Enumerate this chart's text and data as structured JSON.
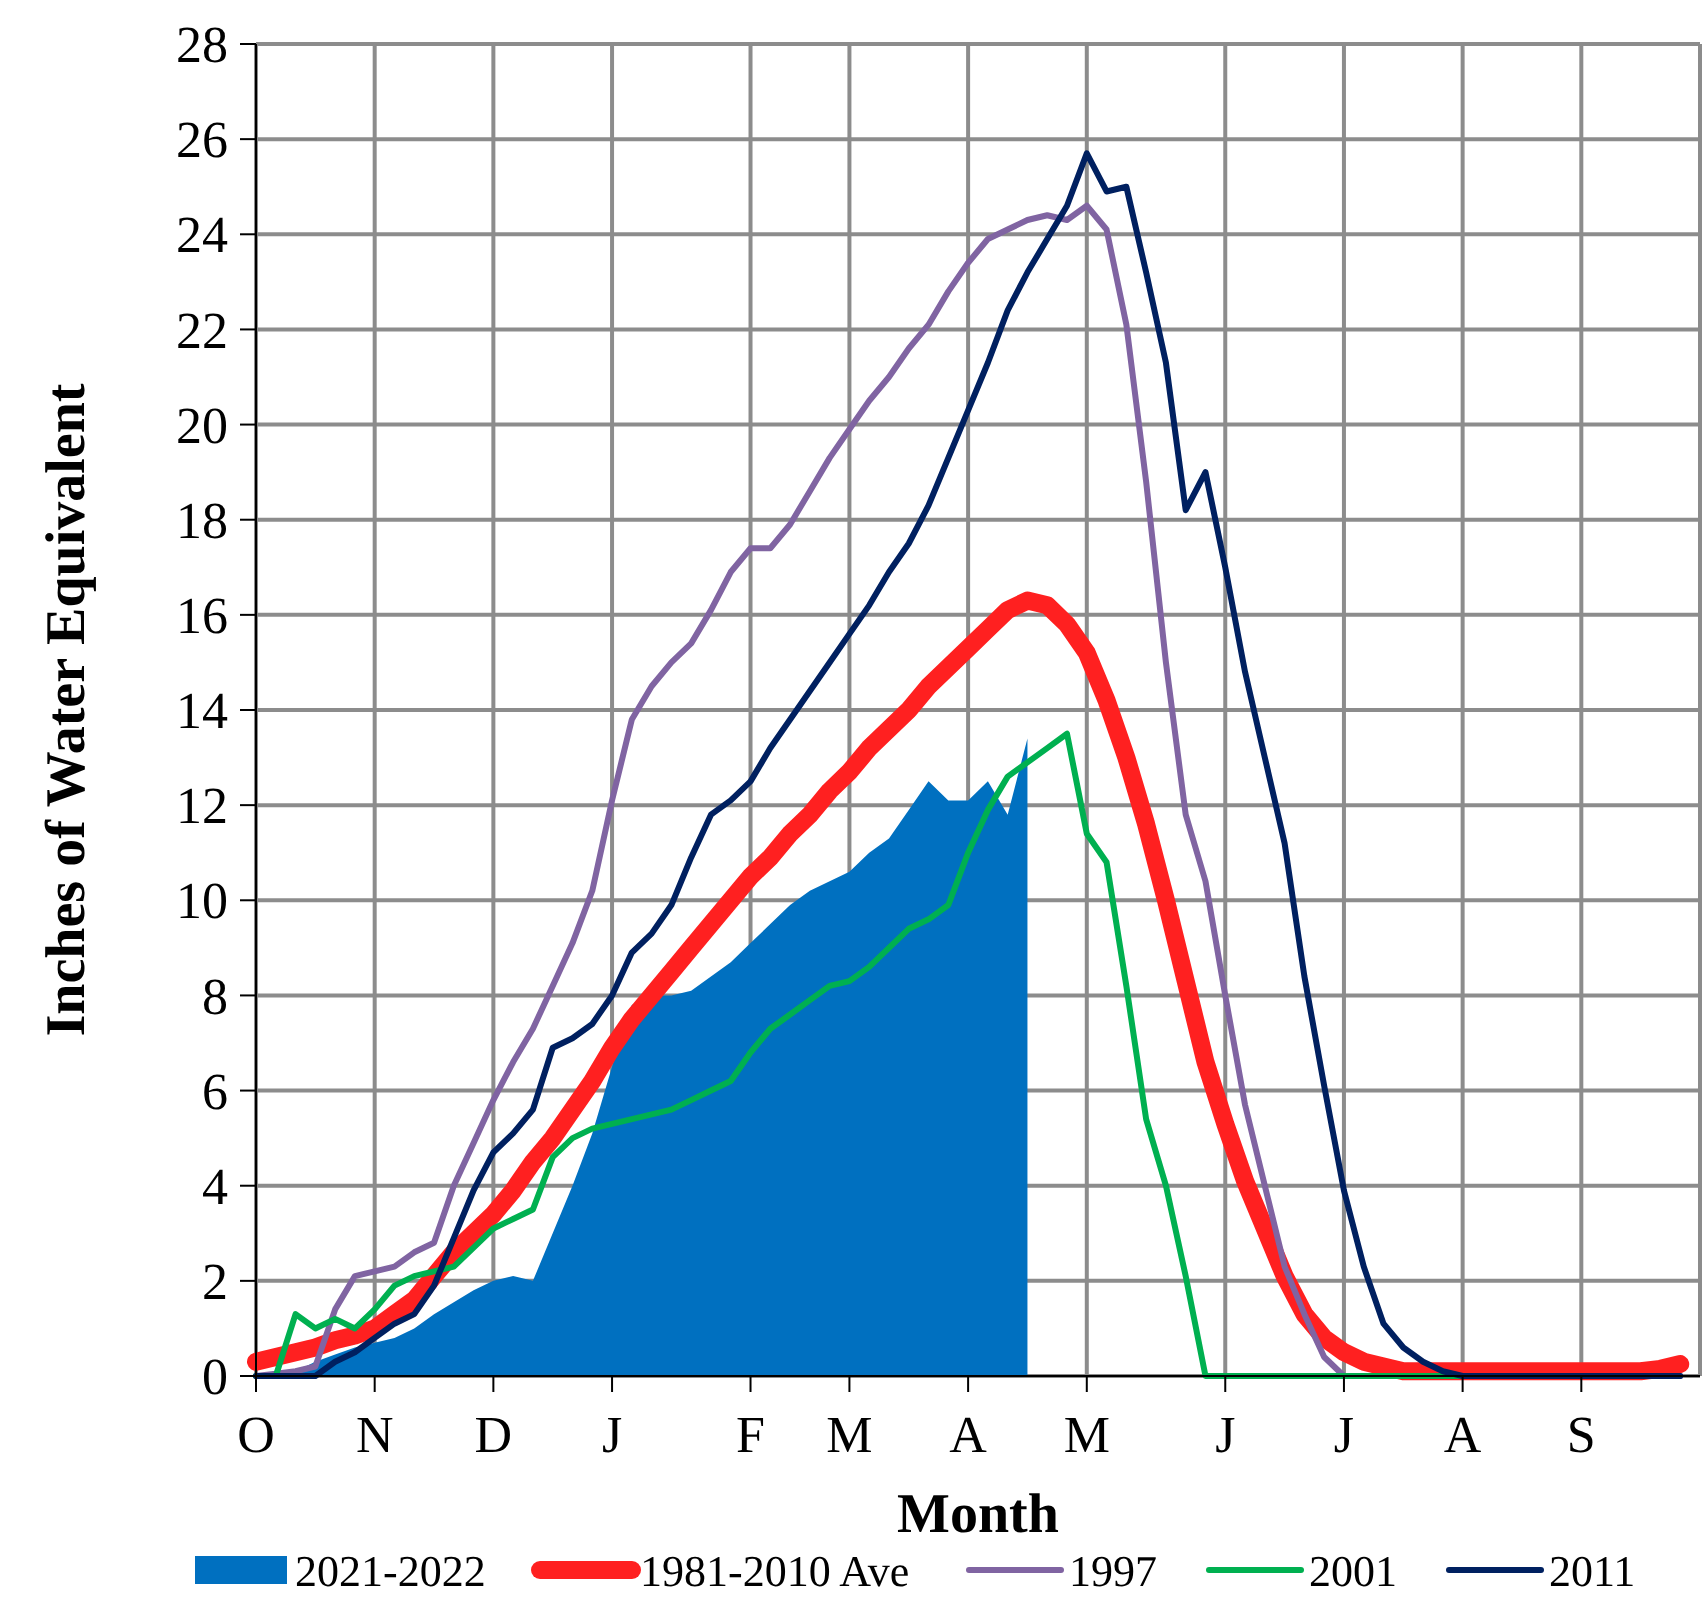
{
  "chart_data": {
    "type": "line",
    "xlabel": "Month",
    "ylabel": "Inches of Water Equivalent",
    "categories": [
      "O",
      null,
      null,
      null,
      null,
      null,
      "N",
      null,
      null,
      null,
      null,
      null,
      "D",
      null,
      null,
      null,
      null,
      null,
      "J",
      null,
      null,
      null,
      null,
      null,
      null,
      "F",
      null,
      null,
      null,
      null,
      "M",
      null,
      null,
      null,
      null,
      null,
      "A",
      null,
      null,
      null,
      null,
      null,
      "M",
      null,
      null,
      null,
      null,
      null,
      null,
      "J",
      null,
      null,
      null,
      null,
      null,
      "J",
      null,
      null,
      null,
      null,
      null,
      "A",
      null,
      null,
      null,
      null,
      null,
      "S",
      null,
      null,
      null,
      null,
      null
    ],
    "ylim": [
      0,
      28
    ],
    "yticks": [
      0,
      2,
      4,
      6,
      8,
      10,
      12,
      14,
      16,
      18,
      20,
      22,
      24,
      26,
      28
    ],
    "grid": true,
    "legend": "bottom",
    "series": [
      {
        "name": "2021-2022",
        "type": "area",
        "color": "#0070c0",
        "values": [
          null,
          null,
          0.1,
          0.3,
          0.45,
          0.6,
          0.7,
          0.8,
          1.0,
          1.3,
          1.55,
          1.8,
          2.0,
          2.1,
          2.0,
          3.0,
          4.0,
          5.1,
          6.5,
          7.8,
          8.0,
          8.0,
          8.1,
          8.4,
          8.7,
          9.1,
          9.5,
          9.9,
          10.2,
          10.4,
          10.6,
          11.0,
          11.3,
          11.9,
          12.5,
          12.1,
          12.1,
          12.5,
          11.8,
          13.4,
          null,
          null,
          null,
          null,
          null,
          null,
          null,
          null,
          null,
          null,
          null,
          null,
          null,
          null,
          null,
          null,
          null,
          null,
          null,
          null,
          null,
          null,
          null,
          null,
          null,
          null,
          null,
          null,
          null,
          null,
          null,
          null,
          null
        ]
      },
      {
        "name": "1981-2010 Ave",
        "color": "#ff2020",
        "values": [
          0.3,
          0.4,
          0.5,
          0.6,
          0.75,
          0.85,
          1.0,
          1.3,
          1.6,
          2.1,
          2.6,
          3.0,
          3.4,
          3.9,
          4.5,
          5.0,
          5.6,
          6.2,
          6.9,
          7.5,
          8.0,
          8.5,
          9.0,
          9.5,
          10.0,
          10.5,
          10.9,
          11.4,
          11.8,
          12.3,
          12.7,
          13.2,
          13.6,
          14.0,
          14.5,
          14.9,
          15.3,
          15.7,
          16.1,
          16.3,
          16.2,
          15.8,
          15.2,
          14.2,
          13.0,
          11.6,
          10.0,
          8.3,
          6.6,
          5.3,
          4.1,
          3.1,
          2.1,
          1.3,
          0.8,
          0.5,
          0.3,
          0.2,
          0.1,
          0.1,
          0.1,
          0.1,
          0.1,
          0.1,
          0.1,
          0.1,
          0.1,
          0.1,
          0.1,
          0.1,
          0.1,
          0.15,
          0.25
        ]
      },
      {
        "name": "1997",
        "color": "#8064a2",
        "values": [
          0,
          0.05,
          0.1,
          0.2,
          1.4,
          2.1,
          2.2,
          2.3,
          2.6,
          2.8,
          4.0,
          4.9,
          5.8,
          6.6,
          7.3,
          8.2,
          9.1,
          10.2,
          12.1,
          13.8,
          14.5,
          15.0,
          15.4,
          16.1,
          16.9,
          17.4,
          17.4,
          17.9,
          18.6,
          19.3,
          19.9,
          20.5,
          21.0,
          21.6,
          22.1,
          22.8,
          23.4,
          23.9,
          24.1,
          24.3,
          24.4,
          24.3,
          24.6,
          24.1,
          22.1,
          18.8,
          15.0,
          11.8,
          10.4,
          8.0,
          5.7,
          4.0,
          2.3,
          1.3,
          0.4,
          0,
          0,
          0,
          0,
          0,
          0,
          0,
          0,
          0,
          0,
          0,
          0,
          0,
          0,
          0,
          0,
          0,
          0
        ]
      },
      {
        "name": "2001",
        "color": "#00b050",
        "values": [
          0,
          0,
          1.3,
          1.0,
          1.2,
          1.0,
          1.4,
          1.9,
          2.1,
          2.2,
          2.3,
          2.7,
          3.1,
          3.3,
          3.5,
          4.6,
          5.0,
          5.2,
          5.3,
          5.4,
          5.5,
          5.6,
          5.8,
          6.0,
          6.2,
          6.8,
          7.3,
          7.6,
          7.9,
          8.2,
          8.3,
          8.6,
          9.0,
          9.4,
          9.6,
          9.9,
          11.0,
          11.9,
          12.6,
          12.9,
          13.2,
          13.5,
          11.4,
          10.8,
          8.2,
          5.4,
          4.0,
          2.1,
          0,
          0,
          0,
          0,
          0,
          0,
          0,
          0,
          0,
          0,
          0,
          0,
          0,
          0,
          0,
          null,
          null,
          null,
          null,
          null,
          null,
          null,
          null,
          null,
          null
        ]
      },
      {
        "name": "2011",
        "color": "#002060",
        "values": [
          0,
          0,
          0,
          0,
          0.3,
          0.5,
          0.8,
          1.1,
          1.3,
          1.9,
          2.9,
          3.9,
          4.7,
          5.1,
          5.6,
          6.9,
          7.1,
          7.4,
          8.0,
          8.9,
          9.3,
          9.9,
          10.9,
          11.8,
          12.1,
          12.5,
          13.2,
          13.8,
          14.4,
          15.0,
          15.6,
          16.2,
          16.9,
          17.5,
          18.3,
          19.3,
          20.3,
          21.3,
          22.4,
          23.2,
          23.9,
          24.6,
          25.7,
          24.9,
          25.0,
          23.2,
          21.3,
          18.2,
          19.0,
          17.0,
          14.8,
          13.0,
          11.2,
          8.4,
          6.1,
          3.9,
          2.3,
          1.1,
          0.6,
          0.3,
          0.1,
          0,
          0,
          0,
          0,
          0,
          0,
          0,
          0,
          0,
          0,
          0,
          0
        ]
      }
    ]
  }
}
